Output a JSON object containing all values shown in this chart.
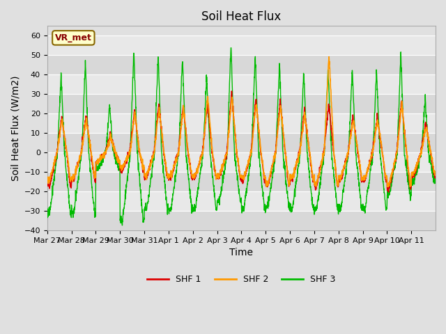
{
  "title": "Soil Heat Flux",
  "ylabel": "Soil Heat Flux (W/m2)",
  "xlabel": "Time",
  "ylim": [
    -40,
    65
  ],
  "yticks": [
    -40,
    -30,
    -20,
    -10,
    0,
    10,
    20,
    30,
    40,
    50,
    60
  ],
  "colors": {
    "SHF 1": "#dd0000",
    "SHF 2": "#ff9900",
    "SHF 3": "#00bb00"
  },
  "legend_label": "VR_met",
  "legend_bg": "#ffffcc",
  "legend_border": "#886600",
  "bg_color": "#e0e0e0",
  "grid_color": "#ffffff",
  "xtick_labels": [
    "Mar 27",
    "Mar 28",
    "Mar 29",
    "Mar 30",
    "Mar 31",
    "Apr 1",
    "Apr 2",
    "Apr 3",
    "Apr 4",
    "Apr 5",
    "Apr 6",
    "Apr 7",
    "Apr 8",
    "Apr 9",
    "Apr 10",
    "Apr 11"
  ],
  "title_fontsize": 12,
  "axis_label_fontsize": 10,
  "tick_fontsize": 8,
  "shf1_peaks": [
    18,
    19,
    9,
    22,
    25,
    24,
    25,
    31,
    27,
    26,
    22,
    25,
    19,
    18,
    27,
    15
  ],
  "shf2_peaks": [
    17,
    17,
    8,
    20,
    23,
    23,
    29,
    29,
    25,
    24,
    20,
    50,
    17,
    17,
    25,
    13
  ],
  "shf3_peaks": [
    40,
    46,
    24,
    53,
    50,
    49,
    39,
    56,
    50,
    46,
    42,
    43,
    43,
    42,
    51,
    28
  ],
  "shf1_troughs": [
    -17,
    -14,
    -5,
    -9,
    -13,
    -13,
    -13,
    -13,
    -14,
    -17,
    -14,
    -17,
    -14,
    -14,
    -18,
    -12
  ],
  "shf2_troughs": [
    -14,
    -13,
    -5,
    -8,
    -12,
    -12,
    -12,
    -12,
    -13,
    -16,
    -13,
    -16,
    -13,
    -13,
    -16,
    -11
  ],
  "shf3_troughs": [
    -31,
    -31,
    -8,
    -35,
    -29,
    -29,
    -29,
    -25,
    -29,
    -28,
    -29,
    -29,
    -29,
    -29,
    -22,
    -15
  ]
}
